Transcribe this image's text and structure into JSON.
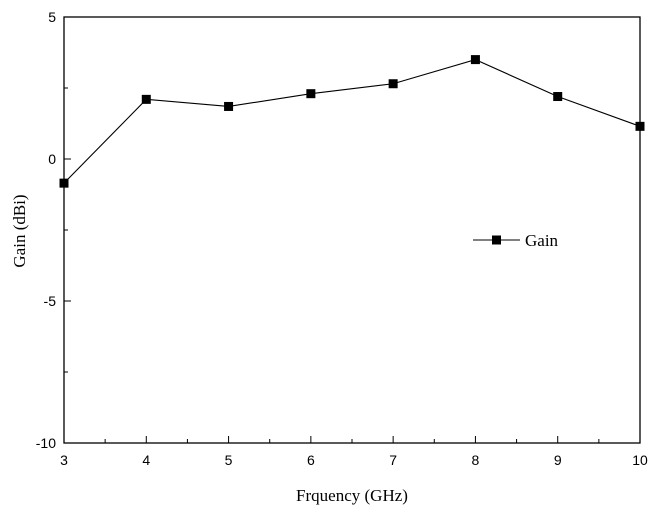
{
  "chart_data": {
    "type": "line",
    "title": "",
    "xlabel": "Frquency (GHz)",
    "ylabel": "Gain (dBi)",
    "xlim": [
      3,
      10
    ],
    "ylim": [
      -10,
      5
    ],
    "xticks": [
      "3",
      "4",
      "5",
      "6",
      "7",
      "8",
      "9",
      "10"
    ],
    "yticks": [
      "5",
      "0",
      "-5",
      "-10"
    ],
    "legend_position": "center-right",
    "grid": false,
    "series": [
      {
        "name": "Gain",
        "marker": "square",
        "color": "#000000",
        "x": [
          3,
          4,
          5,
          6,
          7,
          8,
          9,
          10
        ],
        "y": [
          -0.85,
          2.1,
          1.85,
          2.3,
          2.65,
          3.5,
          2.2,
          1.15
        ]
      }
    ]
  }
}
